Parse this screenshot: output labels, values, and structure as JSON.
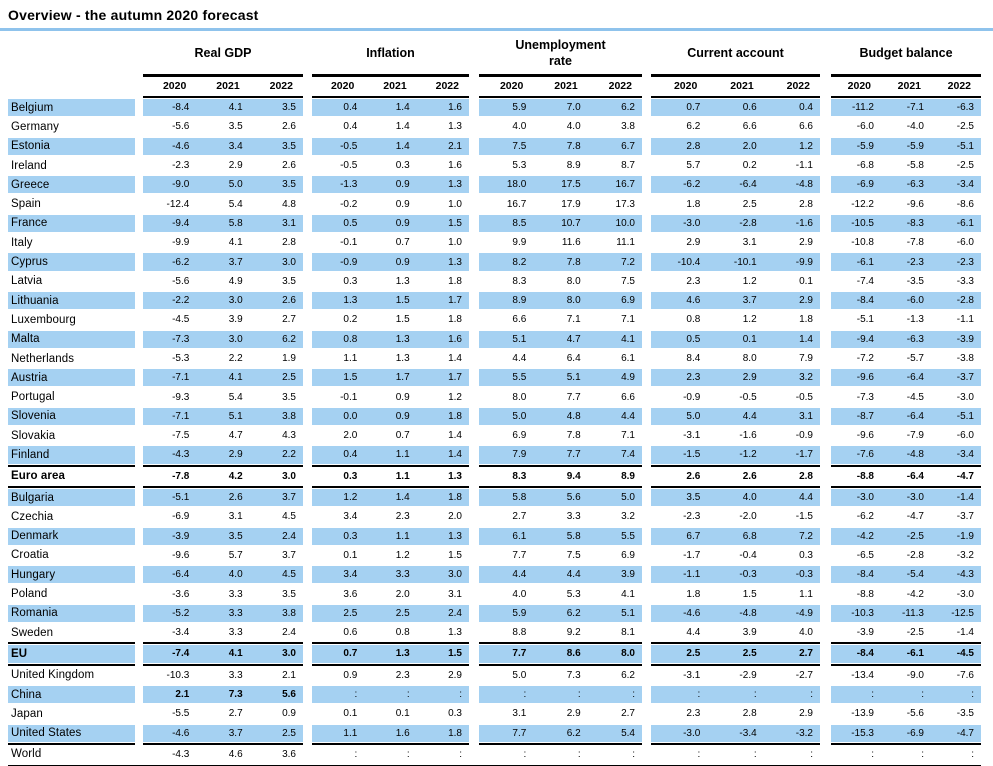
{
  "title": "Overview - the autumn 2020 forecast",
  "colors": {
    "row_highlight": "#a5d1f2",
    "title_rule": "#8fc3ec",
    "rule": "#000000"
  },
  "missing_value_symbol": ":",
  "table": {
    "groups": [
      {
        "label": "Real GDP",
        "years": [
          "2020",
          "2021",
          "2022"
        ]
      },
      {
        "label": "Inflation",
        "years": [
          "2020",
          "2021",
          "2022"
        ]
      },
      {
        "label": "Unemployment rate",
        "years": [
          "2020",
          "2021",
          "2022"
        ]
      },
      {
        "label": "Current account",
        "years": [
          "2020",
          "2021",
          "2022"
        ]
      },
      {
        "label": "Budget balance",
        "years": [
          "2020",
          "2021",
          "2022"
        ]
      }
    ],
    "rows": [
      {
        "country": "Belgium",
        "highlight": true,
        "values": [
          [
            "-8.4",
            "4.1",
            "3.5"
          ],
          [
            "0.4",
            "1.4",
            "1.6"
          ],
          [
            "5.9",
            "7.0",
            "6.2"
          ],
          [
            "0.7",
            "0.6",
            "0.4"
          ],
          [
            "-11.2",
            "-7.1",
            "-6.3"
          ]
        ]
      },
      {
        "country": "Germany",
        "highlight": false,
        "values": [
          [
            "-5.6",
            "3.5",
            "2.6"
          ],
          [
            "0.4",
            "1.4",
            "1.3"
          ],
          [
            "4.0",
            "4.0",
            "3.8"
          ],
          [
            "6.2",
            "6.6",
            "6.6"
          ],
          [
            "-6.0",
            "-4.0",
            "-2.5"
          ]
        ]
      },
      {
        "country": "Estonia",
        "highlight": true,
        "values": [
          [
            "-4.6",
            "3.4",
            "3.5"
          ],
          [
            "-0.5",
            "1.4",
            "2.1"
          ],
          [
            "7.5",
            "7.8",
            "6.7"
          ],
          [
            "2.8",
            "2.0",
            "1.2"
          ],
          [
            "-5.9",
            "-5.9",
            "-5.1"
          ]
        ]
      },
      {
        "country": "Ireland",
        "highlight": false,
        "values": [
          [
            "-2.3",
            "2.9",
            "2.6"
          ],
          [
            "-0.5",
            "0.3",
            "1.6"
          ],
          [
            "5.3",
            "8.9",
            "8.7"
          ],
          [
            "5.7",
            "0.2",
            "-1.1"
          ],
          [
            "-6.8",
            "-5.8",
            "-2.5"
          ]
        ]
      },
      {
        "country": "Greece",
        "highlight": true,
        "values": [
          [
            "-9.0",
            "5.0",
            "3.5"
          ],
          [
            "-1.3",
            "0.9",
            "1.3"
          ],
          [
            "18.0",
            "17.5",
            "16.7"
          ],
          [
            "-6.2",
            "-6.4",
            "-4.8"
          ],
          [
            "-6.9",
            "-6.3",
            "-3.4"
          ]
        ]
      },
      {
        "country": "Spain",
        "highlight": false,
        "values": [
          [
            "-12.4",
            "5.4",
            "4.8"
          ],
          [
            "-0.2",
            "0.9",
            "1.0"
          ],
          [
            "16.7",
            "17.9",
            "17.3"
          ],
          [
            "1.8",
            "2.5",
            "2.8"
          ],
          [
            "-12.2",
            "-9.6",
            "-8.6"
          ]
        ]
      },
      {
        "country": "France",
        "highlight": true,
        "values": [
          [
            "-9.4",
            "5.8",
            "3.1"
          ],
          [
            "0.5",
            "0.9",
            "1.5"
          ],
          [
            "8.5",
            "10.7",
            "10.0"
          ],
          [
            "-3.0",
            "-2.8",
            "-1.6"
          ],
          [
            "-10.5",
            "-8.3",
            "-6.1"
          ]
        ]
      },
      {
        "country": "Italy",
        "highlight": false,
        "values": [
          [
            "-9.9",
            "4.1",
            "2.8"
          ],
          [
            "-0.1",
            "0.7",
            "1.0"
          ],
          [
            "9.9",
            "11.6",
            "11.1"
          ],
          [
            "2.9",
            "3.1",
            "2.9"
          ],
          [
            "-10.8",
            "-7.8",
            "-6.0"
          ]
        ]
      },
      {
        "country": "Cyprus",
        "highlight": true,
        "values": [
          [
            "-6.2",
            "3.7",
            "3.0"
          ],
          [
            "-0.9",
            "0.9",
            "1.3"
          ],
          [
            "8.2",
            "7.8",
            "7.2"
          ],
          [
            "-10.4",
            "-10.1",
            "-9.9"
          ],
          [
            "-6.1",
            "-2.3",
            "-2.3"
          ]
        ]
      },
      {
        "country": "Latvia",
        "highlight": false,
        "values": [
          [
            "-5.6",
            "4.9",
            "3.5"
          ],
          [
            "0.3",
            "1.3",
            "1.8"
          ],
          [
            "8.3",
            "8.0",
            "7.5"
          ],
          [
            "2.3",
            "1.2",
            "0.1"
          ],
          [
            "-7.4",
            "-3.5",
            "-3.3"
          ]
        ]
      },
      {
        "country": "Lithuania",
        "highlight": true,
        "values": [
          [
            "-2.2",
            "3.0",
            "2.6"
          ],
          [
            "1.3",
            "1.5",
            "1.7"
          ],
          [
            "8.9",
            "8.0",
            "6.9"
          ],
          [
            "4.6",
            "3.7",
            "2.9"
          ],
          [
            "-8.4",
            "-6.0",
            "-2.8"
          ]
        ]
      },
      {
        "country": "Luxembourg",
        "highlight": false,
        "values": [
          [
            "-4.5",
            "3.9",
            "2.7"
          ],
          [
            "0.2",
            "1.5",
            "1.8"
          ],
          [
            "6.6",
            "7.1",
            "7.1"
          ],
          [
            "0.8",
            "1.2",
            "1.8"
          ],
          [
            "-5.1",
            "-1.3",
            "-1.1"
          ]
        ]
      },
      {
        "country": "Malta",
        "highlight": true,
        "values": [
          [
            "-7.3",
            "3.0",
            "6.2"
          ],
          [
            "0.8",
            "1.3",
            "1.6"
          ],
          [
            "5.1",
            "4.7",
            "4.1"
          ],
          [
            "0.5",
            "0.1",
            "1.4"
          ],
          [
            "-9.4",
            "-6.3",
            "-3.9"
          ]
        ]
      },
      {
        "country": "Netherlands",
        "highlight": false,
        "values": [
          [
            "-5.3",
            "2.2",
            "1.9"
          ],
          [
            "1.1",
            "1.3",
            "1.4"
          ],
          [
            "4.4",
            "6.4",
            "6.1"
          ],
          [
            "8.4",
            "8.0",
            "7.9"
          ],
          [
            "-7.2",
            "-5.7",
            "-3.8"
          ]
        ]
      },
      {
        "country": "Austria",
        "highlight": true,
        "values": [
          [
            "-7.1",
            "4.1",
            "2.5"
          ],
          [
            "1.5",
            "1.7",
            "1.7"
          ],
          [
            "5.5",
            "5.1",
            "4.9"
          ],
          [
            "2.3",
            "2.9",
            "3.2"
          ],
          [
            "-9.6",
            "-6.4",
            "-3.7"
          ]
        ]
      },
      {
        "country": "Portugal",
        "highlight": false,
        "values": [
          [
            "-9.3",
            "5.4",
            "3.5"
          ],
          [
            "-0.1",
            "0.9",
            "1.2"
          ],
          [
            "8.0",
            "7.7",
            "6.6"
          ],
          [
            "-0.9",
            "-0.5",
            "-0.5"
          ],
          [
            "-7.3",
            "-4.5",
            "-3.0"
          ]
        ]
      },
      {
        "country": "Slovenia",
        "highlight": true,
        "values": [
          [
            "-7.1",
            "5.1",
            "3.8"
          ],
          [
            "0.0",
            "0.9",
            "1.8"
          ],
          [
            "5.0",
            "4.8",
            "4.4"
          ],
          [
            "5.0",
            "4.4",
            "3.1"
          ],
          [
            "-8.7",
            "-6.4",
            "-5.1"
          ]
        ]
      },
      {
        "country": "Slovakia",
        "highlight": false,
        "values": [
          [
            "-7.5",
            "4.7",
            "4.3"
          ],
          [
            "2.0",
            "0.7",
            "1.4"
          ],
          [
            "6.9",
            "7.8",
            "7.1"
          ],
          [
            "-3.1",
            "-1.6",
            "-0.9"
          ],
          [
            "-9.6",
            "-7.9",
            "-6.0"
          ]
        ]
      },
      {
        "country": "Finland",
        "highlight": true,
        "values": [
          [
            "-4.3",
            "2.9",
            "2.2"
          ],
          [
            "0.4",
            "1.1",
            "1.4"
          ],
          [
            "7.9",
            "7.7",
            "7.4"
          ],
          [
            "-1.5",
            "-1.2",
            "-1.7"
          ],
          [
            "-7.6",
            "-4.8",
            "-3.4"
          ]
        ]
      },
      {
        "country": "Euro area",
        "highlight": false,
        "bold": true,
        "rule_above": true,
        "rule_below": true,
        "values": [
          [
            "-7.8",
            "4.2",
            "3.0"
          ],
          [
            "0.3",
            "1.1",
            "1.3"
          ],
          [
            "8.3",
            "9.4",
            "8.9"
          ],
          [
            "2.6",
            "2.6",
            "2.8"
          ],
          [
            "-8.8",
            "-6.4",
            "-4.7"
          ]
        ]
      },
      {
        "country": "Bulgaria",
        "highlight": true,
        "values": [
          [
            "-5.1",
            "2.6",
            "3.7"
          ],
          [
            "1.2",
            "1.4",
            "1.8"
          ],
          [
            "5.8",
            "5.6",
            "5.0"
          ],
          [
            "3.5",
            "4.0",
            "4.4"
          ],
          [
            "-3.0",
            "-3.0",
            "-1.4"
          ]
        ]
      },
      {
        "country": "Czechia",
        "highlight": false,
        "values": [
          [
            "-6.9",
            "3.1",
            "4.5"
          ],
          [
            "3.4",
            "2.3",
            "2.0"
          ],
          [
            "2.7",
            "3.3",
            "3.2"
          ],
          [
            "-2.3",
            "-2.0",
            "-1.5"
          ],
          [
            "-6.2",
            "-4.7",
            "-3.7"
          ]
        ]
      },
      {
        "country": "Denmark",
        "highlight": true,
        "values": [
          [
            "-3.9",
            "3.5",
            "2.4"
          ],
          [
            "0.3",
            "1.1",
            "1.3"
          ],
          [
            "6.1",
            "5.8",
            "5.5"
          ],
          [
            "6.7",
            "6.8",
            "7.2"
          ],
          [
            "-4.2",
            "-2.5",
            "-1.9"
          ]
        ]
      },
      {
        "country": "Croatia",
        "highlight": false,
        "values": [
          [
            "-9.6",
            "5.7",
            "3.7"
          ],
          [
            "0.1",
            "1.2",
            "1.5"
          ],
          [
            "7.7",
            "7.5",
            "6.9"
          ],
          [
            "-1.7",
            "-0.4",
            "0.3"
          ],
          [
            "-6.5",
            "-2.8",
            "-3.2"
          ]
        ]
      },
      {
        "country": "Hungary",
        "highlight": true,
        "values": [
          [
            "-6.4",
            "4.0",
            "4.5"
          ],
          [
            "3.4",
            "3.3",
            "3.0"
          ],
          [
            "4.4",
            "4.4",
            "3.9"
          ],
          [
            "-1.1",
            "-0.3",
            "-0.3"
          ],
          [
            "-8.4",
            "-5.4",
            "-4.3"
          ]
        ]
      },
      {
        "country": "Poland",
        "highlight": false,
        "values": [
          [
            "-3.6",
            "3.3",
            "3.5"
          ],
          [
            "3.6",
            "2.0",
            "3.1"
          ],
          [
            "4.0",
            "5.3",
            "4.1"
          ],
          [
            "1.8",
            "1.5",
            "1.1"
          ],
          [
            "-8.8",
            "-4.2",
            "-3.0"
          ]
        ]
      },
      {
        "country": "Romania",
        "highlight": true,
        "values": [
          [
            "-5.2",
            "3.3",
            "3.8"
          ],
          [
            "2.5",
            "2.5",
            "2.4"
          ],
          [
            "5.9",
            "6.2",
            "5.1"
          ],
          [
            "-4.6",
            "-4.8",
            "-4.9"
          ],
          [
            "-10.3",
            "-11.3",
            "-12.5"
          ]
        ]
      },
      {
        "country": "Sweden",
        "highlight": false,
        "values": [
          [
            "-3.4",
            "3.3",
            "2.4"
          ],
          [
            "0.6",
            "0.8",
            "1.3"
          ],
          [
            "8.8",
            "9.2",
            "8.1"
          ],
          [
            "4.4",
            "3.9",
            "4.0"
          ],
          [
            "-3.9",
            "-2.5",
            "-1.4"
          ]
        ]
      },
      {
        "country": "EU",
        "highlight": true,
        "bold": true,
        "rule_above": true,
        "rule_below": true,
        "values": [
          [
            "-7.4",
            "4.1",
            "3.0"
          ],
          [
            "0.7",
            "1.3",
            "1.5"
          ],
          [
            "7.7",
            "8.6",
            "8.0"
          ],
          [
            "2.5",
            "2.5",
            "2.7"
          ],
          [
            "-8.4",
            "-6.1",
            "-4.5"
          ]
        ]
      },
      {
        "country": "United Kingdom",
        "highlight": false,
        "values": [
          [
            "-10.3",
            "3.3",
            "2.1"
          ],
          [
            "0.9",
            "2.3",
            "2.9"
          ],
          [
            "5.0",
            "7.3",
            "6.2"
          ],
          [
            "-3.1",
            "-2.9",
            "-2.7"
          ],
          [
            "-13.4",
            "-9.0",
            "-7.6"
          ]
        ]
      },
      {
        "country": "China",
        "highlight": true,
        "bold_groups": [
          0
        ],
        "values": [
          [
            "2.1",
            "7.3",
            "5.6"
          ],
          [
            ":",
            ":",
            ":"
          ],
          [
            ":",
            ":",
            ":"
          ],
          [
            ":",
            ":",
            ":"
          ],
          [
            ":",
            ":",
            ":"
          ]
        ]
      },
      {
        "country": "Japan",
        "highlight": false,
        "values": [
          [
            "-5.5",
            "2.7",
            "0.9"
          ],
          [
            "0.1",
            "0.1",
            "0.3"
          ],
          [
            "3.1",
            "2.9",
            "2.7"
          ],
          [
            "2.3",
            "2.8",
            "2.9"
          ],
          [
            "-13.9",
            "-5.6",
            "-3.5"
          ]
        ]
      },
      {
        "country": "United States",
        "highlight": true,
        "rule_below": true,
        "values": [
          [
            "-4.6",
            "3.7",
            "2.5"
          ],
          [
            "1.1",
            "1.6",
            "1.8"
          ],
          [
            "7.7",
            "6.2",
            "5.4"
          ],
          [
            "-3.0",
            "-3.4",
            "-3.2"
          ],
          [
            "-15.3",
            "-6.9",
            "-4.7"
          ]
        ]
      },
      {
        "country": "World",
        "highlight": false,
        "values": [
          [
            "-4.3",
            "4.6",
            "3.6"
          ],
          [
            ":",
            ":",
            ":"
          ],
          [
            ":",
            ":",
            ":"
          ],
          [
            ":",
            ":",
            ":"
          ],
          [
            ":",
            ":",
            ":"
          ]
        ]
      }
    ]
  }
}
